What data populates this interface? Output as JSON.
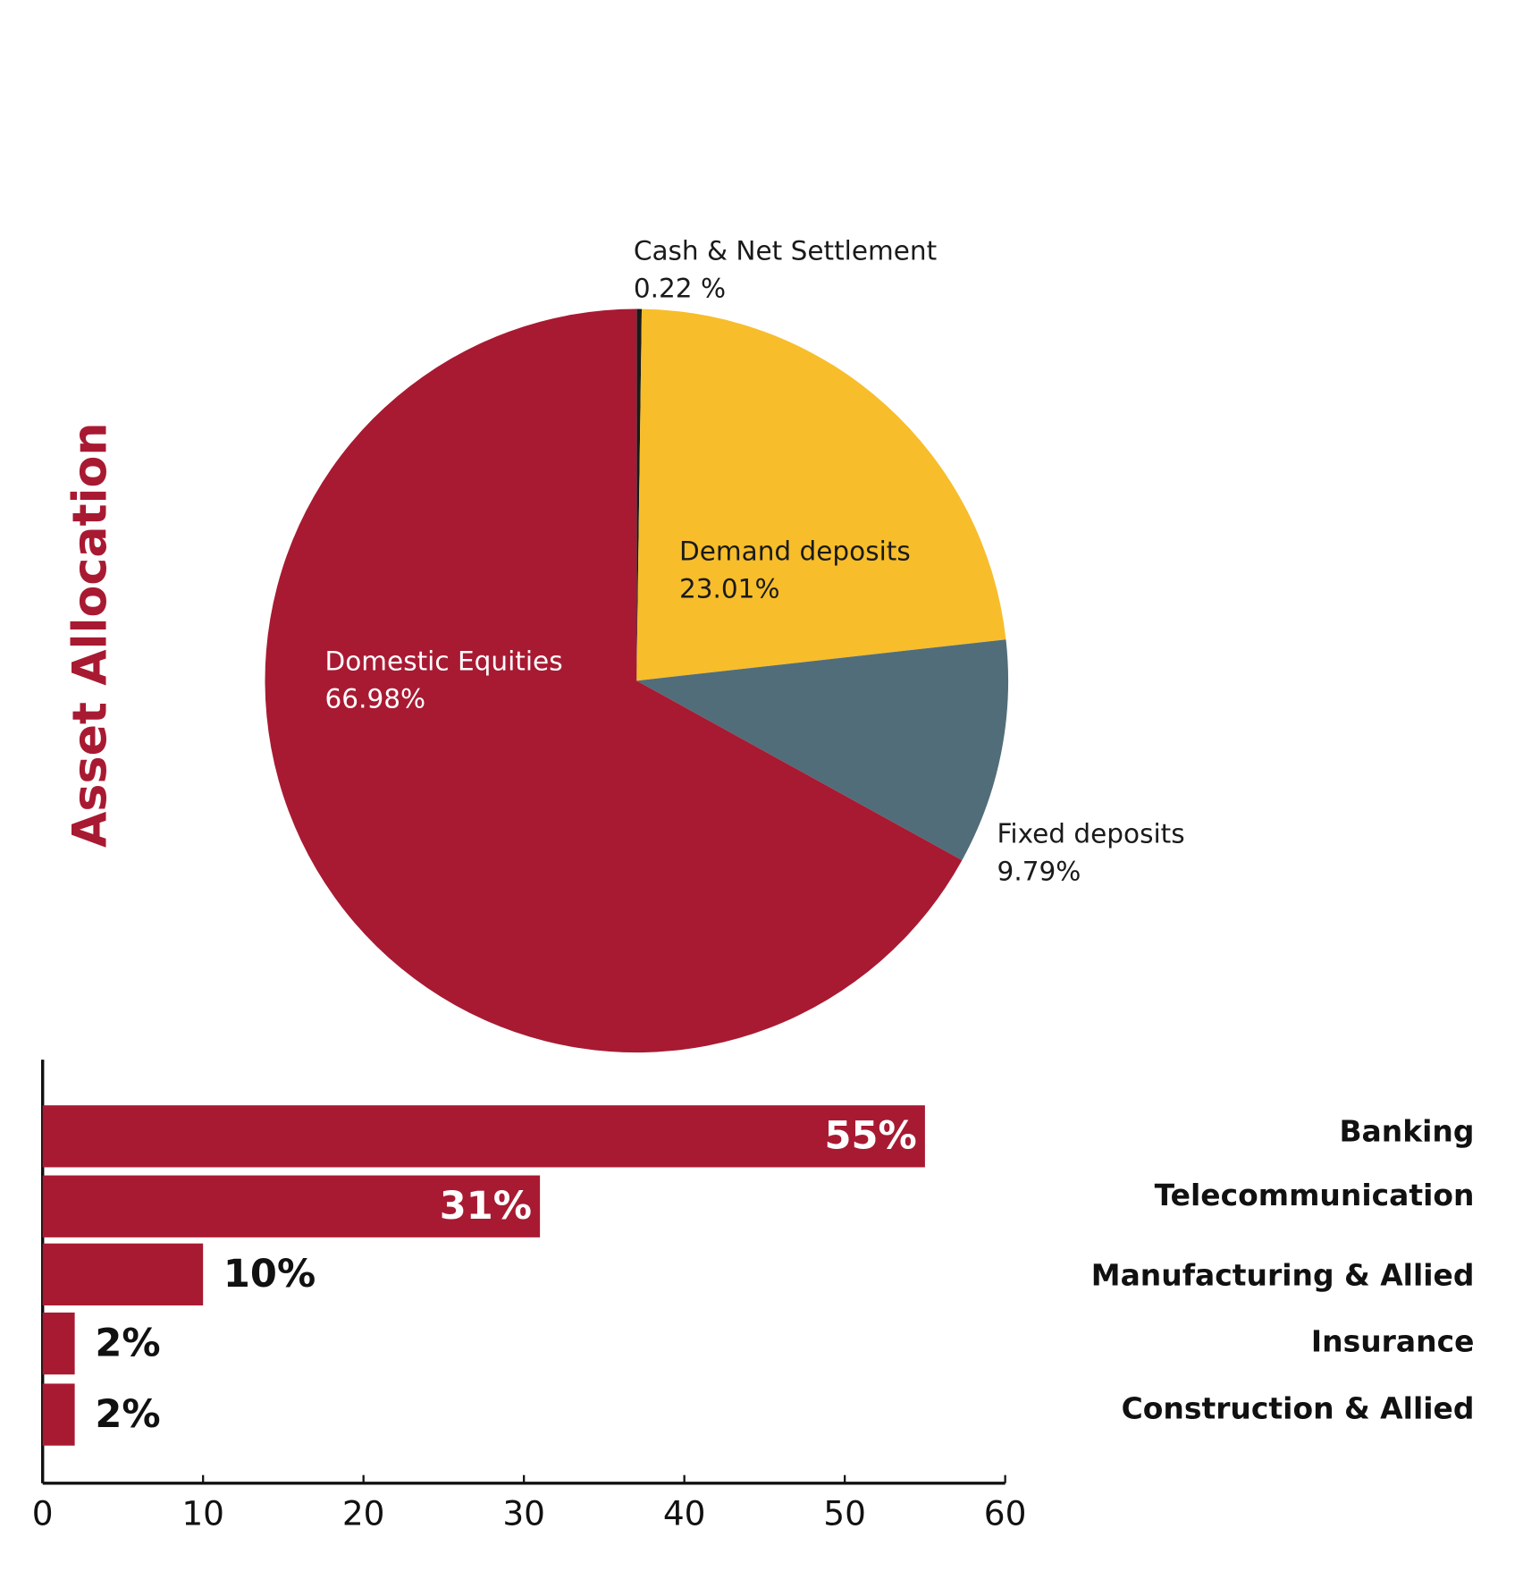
{
  "chart_data": [
    {
      "type": "pie",
      "title": "Asset Allocation",
      "categories": [
        "Cash & Net Settlement",
        "Demand deposits",
        "Fixed deposits",
        "Domestic Equities"
      ],
      "values": [
        0.22,
        23.01,
        9.79,
        66.98
      ],
      "value_labels": [
        "0.22 %",
        "23.01%",
        "9.79%",
        "66.98%"
      ],
      "colors": [
        "#1a1a1a",
        "#f7bd2b",
        "#516d7a",
        "#a81a32"
      ]
    },
    {
      "type": "barh",
      "categories": [
        "Banking",
        "Telecommunication",
        "Manufacturing & Allied",
        "Insurance",
        "Construction & Allied"
      ],
      "values": [
        55,
        31,
        10,
        2,
        2
      ],
      "value_labels": [
        "55%",
        "31%",
        "10%",
        "2%",
        "2%"
      ],
      "color": "#a81a32",
      "xlim": [
        0,
        60
      ],
      "xticks": [
        0,
        10,
        20,
        30,
        40,
        50,
        60
      ]
    }
  ]
}
